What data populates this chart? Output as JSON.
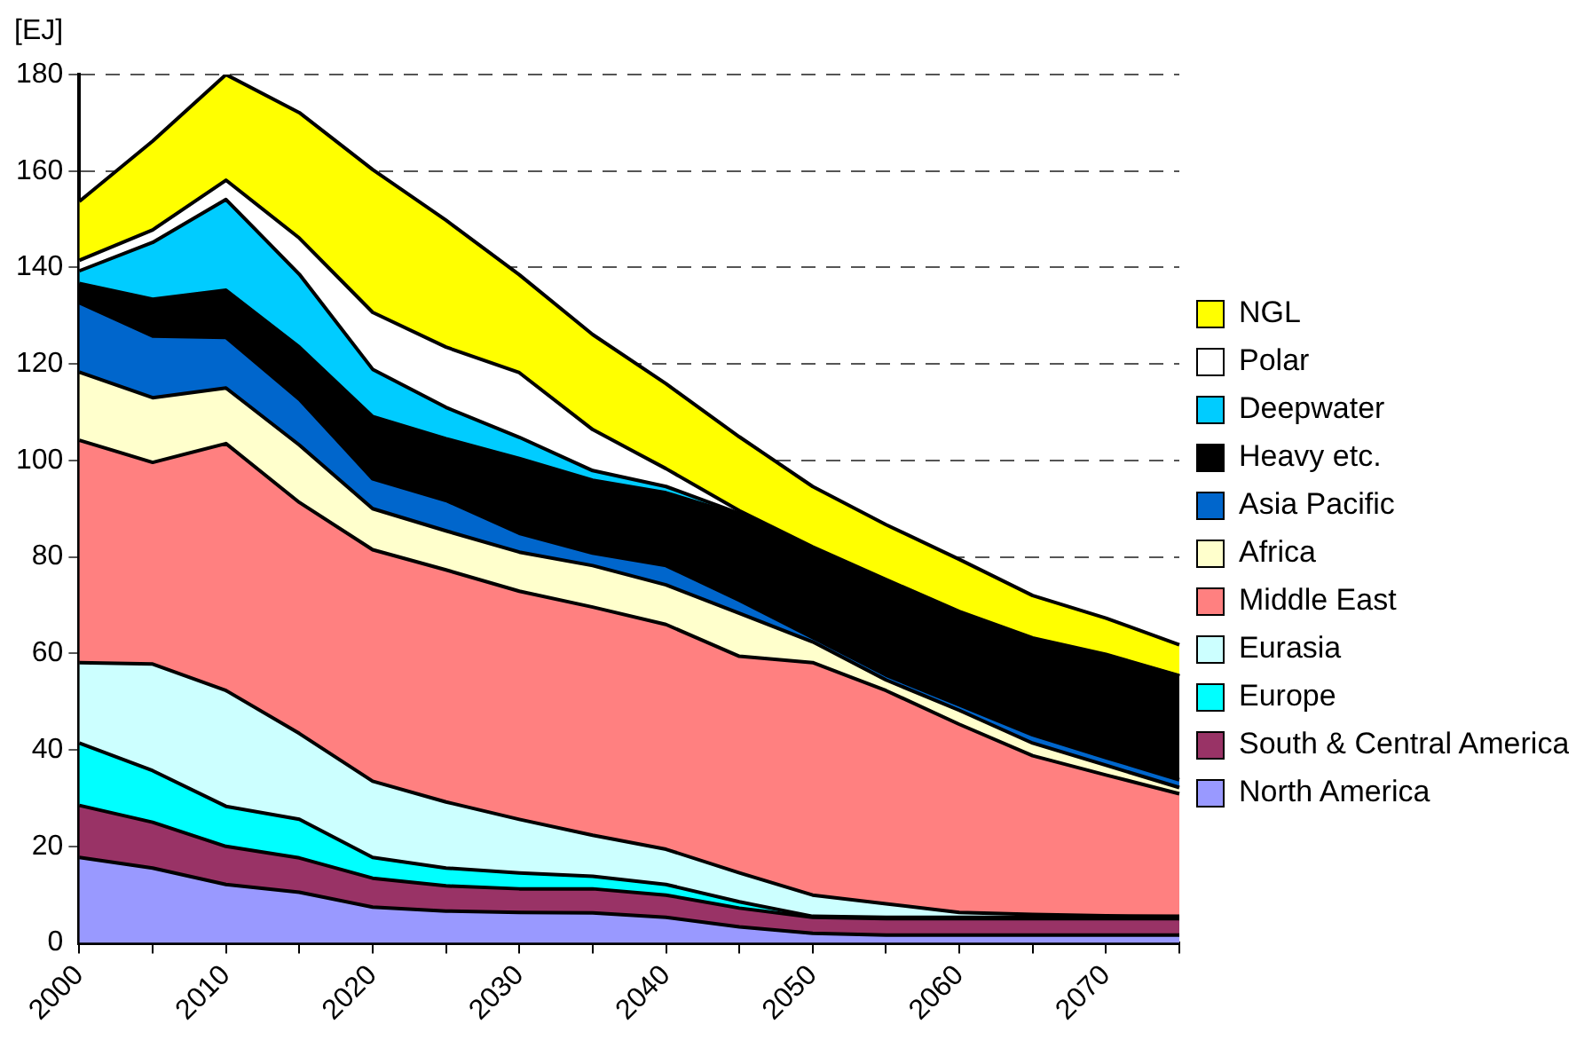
{
  "chart_data": {
    "type": "area",
    "stacked": true,
    "ylabel": "[EJ]",
    "categories": [
      "2000",
      null,
      "2010",
      null,
      "2020",
      null,
      "2030",
      null,
      "2040",
      null,
      "2050",
      null,
      "2060",
      null,
      "2070",
      null
    ],
    "ylim": [
      0,
      180
    ],
    "yticks": [
      0,
      20,
      40,
      60,
      80,
      100,
      120,
      140,
      160,
      180
    ],
    "grid": "y",
    "legend": "right",
    "series": [
      {
        "name": "North America",
        "color": "#9999ff",
        "values": [
          17.7,
          15.5,
          12.1,
          10.5,
          7.4,
          6.6,
          6.3,
          6.2,
          5.3,
          3.3,
          2.0,
          1.6,
          1.6,
          1.6,
          1.6,
          1.6
        ]
      },
      {
        "name": "South & Central America",
        "color": "#993366",
        "values": [
          10.8,
          9.5,
          7.9,
          7.1,
          6.0,
          5.2,
          4.9,
          5.0,
          4.6,
          3.9,
          3.3,
          3.4,
          3.4,
          3.4,
          3.4,
          3.4
        ]
      },
      {
        "name": "Europe",
        "color": "#00ffff",
        "values": [
          12.9,
          10.7,
          8.3,
          8.0,
          4.3,
          3.7,
          3.3,
          2.6,
          2.2,
          1.3,
          0.2,
          0.3,
          0.3,
          0.3,
          0.3,
          0.3
        ]
      },
      {
        "name": "Eurasia",
        "color": "#ccffff",
        "values": [
          16.7,
          22.1,
          24.0,
          17.8,
          15.8,
          13.7,
          11.1,
          8.5,
          7.3,
          6.0,
          4.4,
          2.8,
          1.0,
          0.6,
          0.3,
          0.2
        ]
      },
      {
        "name": "Middle East",
        "color": "#ff8080",
        "values": [
          46.1,
          41.8,
          51.2,
          47.9,
          48.0,
          48.1,
          47.3,
          47.3,
          46.6,
          44.9,
          48.2,
          44.2,
          39.0,
          32.9,
          29.2,
          25.4
        ]
      },
      {
        "name": "Africa",
        "color": "#ffffcc",
        "values": [
          14.1,
          13.4,
          11.5,
          11.9,
          8.5,
          8.1,
          8.1,
          8.6,
          8.2,
          8.9,
          4.3,
          2.2,
          2.9,
          2.6,
          2.0,
          1.3
        ]
      },
      {
        "name": "Asia Pacific",
        "color": "#0066cc",
        "values": [
          14.4,
          12.8,
          10.5,
          9.5,
          6.2,
          6.3,
          3.9,
          2.6,
          4.0,
          2.7,
          0.9,
          1.0,
          1.1,
          1.7,
          1.6,
          1.6
        ]
      },
      {
        "name": "Heavy etc.",
        "color": "#000000",
        "values": [
          4.0,
          7.6,
          9.8,
          10.8,
          12.9,
          12.8,
          15.5,
          15.1,
          15.1,
          17.7,
          18.2,
          19.4,
          19.0,
          19.7,
          21.0,
          21.4
        ]
      },
      {
        "name": "Deepwater",
        "color": "#00ccff",
        "values": [
          2.6,
          11.8,
          18.8,
          15.1,
          9.8,
          6.5,
          4.4,
          2.0,
          1.3,
          0.3,
          0.2,
          0.2,
          0.2,
          0.2,
          0.2,
          0.1
        ]
      },
      {
        "name": "Polar",
        "color": "#ffffff",
        "values": [
          2.2,
          2.6,
          4.0,
          7.5,
          11.8,
          12.5,
          13.4,
          8.5,
          3.7,
          0.6,
          0.4,
          0.2,
          0.2,
          0.2,
          0.2,
          0.1
        ]
      },
      {
        "name": "NGL",
        "color": "#ffff00",
        "values": [
          12.2,
          18.4,
          21.9,
          26.0,
          29.6,
          26.3,
          20.3,
          19.7,
          17.6,
          15.3,
          12.5,
          11.4,
          10.8,
          8.8,
          7.5,
          6.4
        ]
      }
    ]
  }
}
